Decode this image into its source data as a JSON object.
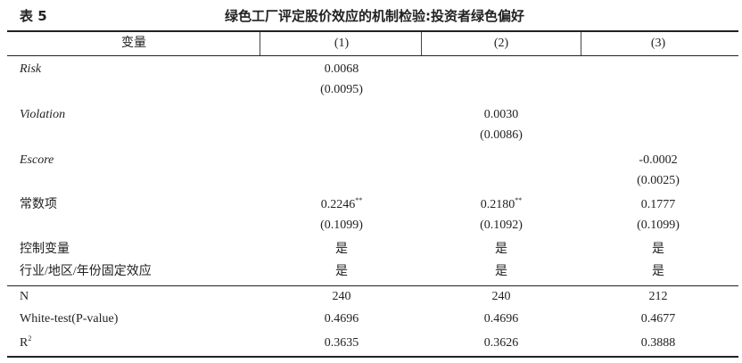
{
  "header": {
    "number": "表 5",
    "title": "绿色工厂评定股价效应的机制检验:投资者绿色偏好"
  },
  "table": {
    "columns": [
      "变量",
      "(1)",
      "(2)",
      "(3)"
    ],
    "rows": [
      {
        "label": "Risk",
        "italic": true,
        "cells": [
          {
            "value": "0.0068",
            "se": "(0.0095)"
          },
          null,
          null
        ]
      },
      {
        "label": "Violation",
        "italic": true,
        "cells": [
          null,
          {
            "value": "0.0030",
            "se": "(0.0086)"
          },
          null
        ]
      },
      {
        "label": "Escore",
        "italic": true,
        "cells": [
          null,
          null,
          {
            "value": "-0.0002",
            "se": "(0.0025)"
          }
        ]
      },
      {
        "label": "常数项",
        "cells": [
          {
            "value": "0.2246",
            "sup": "**",
            "se": "(0.1099)"
          },
          {
            "value": "0.2180",
            "sup": "**",
            "se": "(0.1092)"
          },
          {
            "value": "0.1777",
            "se": "(0.1099)"
          }
        ]
      },
      {
        "label": "控制变量",
        "cells": [
          {
            "value": "是"
          },
          {
            "value": "是"
          },
          {
            "value": "是"
          }
        ]
      },
      {
        "label": "行业/地区/年份固定效应",
        "cells": [
          {
            "value": "是"
          },
          {
            "value": "是"
          },
          {
            "value": "是"
          }
        ]
      },
      {
        "label": "N",
        "cells": [
          {
            "value": "240"
          },
          {
            "value": "240"
          },
          {
            "value": "212"
          }
        ]
      },
      {
        "label": "White-test(P-value)",
        "cells": [
          {
            "value": "0.4696"
          },
          {
            "value": "0.4696"
          },
          {
            "value": "0.4677"
          }
        ]
      },
      {
        "label": "R",
        "label_sup": "2",
        "cells": [
          {
            "value": "0.3635"
          },
          {
            "value": "0.3626"
          },
          {
            "value": "0.3888"
          }
        ]
      }
    ]
  }
}
